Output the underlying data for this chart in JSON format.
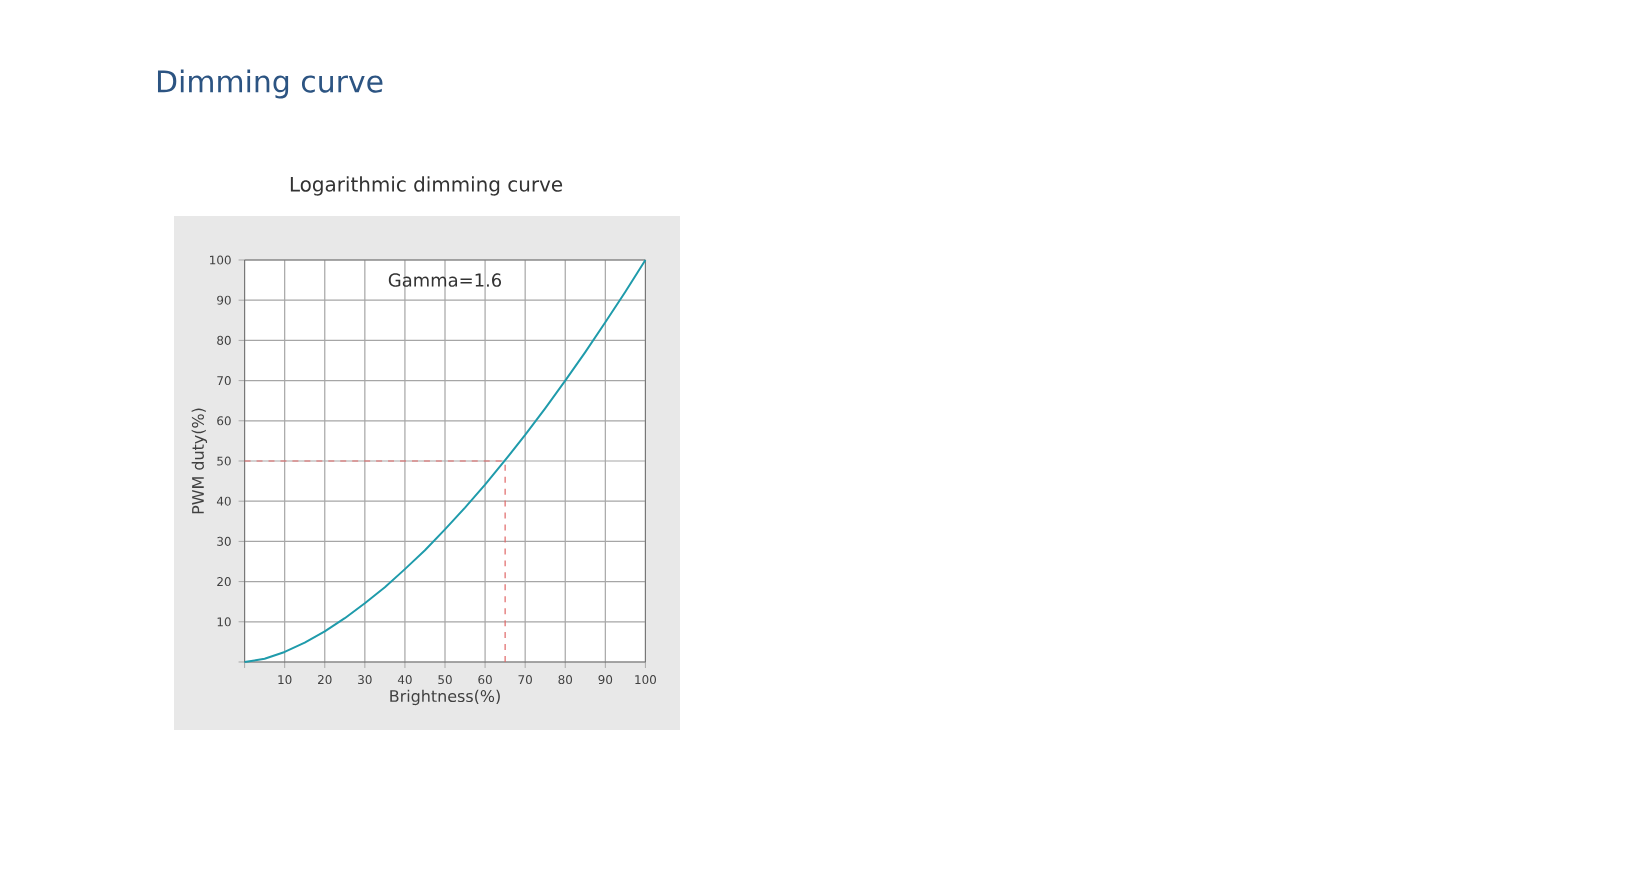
{
  "chart_data": {
    "type": "line",
    "title": "Dimming curve",
    "subtitle": "Logarithmic dimming curve",
    "xlabel": "Brightness(%)",
    "ylabel": "PWM duty(%)",
    "annotations": [
      "Gamma=1.6"
    ],
    "x": [
      0,
      5,
      10,
      15,
      20,
      25,
      30,
      35,
      40,
      45,
      50,
      55,
      60,
      65,
      70,
      75,
      80,
      85,
      90,
      95,
      100
    ],
    "series": [
      {
        "color": "#1f9bab",
        "values": [
          0,
          0.8,
          2.5,
          4.8,
          7.6,
          10.9,
          14.6,
          18.6,
          23.1,
          27.8,
          33.0,
          38.4,
          44.1,
          50.2,
          56.5,
          63.1,
          70.0,
          77.1,
          84.5,
          92.1,
          100
        ]
      }
    ],
    "xlim": [
      0,
      100
    ],
    "ylim": [
      0,
      100
    ],
    "xticks": [
      {
        "value": 0,
        "label": null
      },
      10,
      20,
      30,
      40,
      50,
      60,
      70,
      80,
      90,
      100
    ],
    "yticks": [
      {
        "value": 0,
        "label": null
      },
      10,
      20,
      30,
      40,
      50,
      60,
      70,
      80,
      90,
      100
    ],
    "ref_lines": [
      {
        "axis": "y",
        "value": 50,
        "color": "#e06666",
        "line_style": "dashed"
      },
      {
        "axis": "x",
        "value": 65,
        "color": "#e06666",
        "line_style": "dashed"
      }
    ],
    "grid": true,
    "line_style": "solid"
  }
}
